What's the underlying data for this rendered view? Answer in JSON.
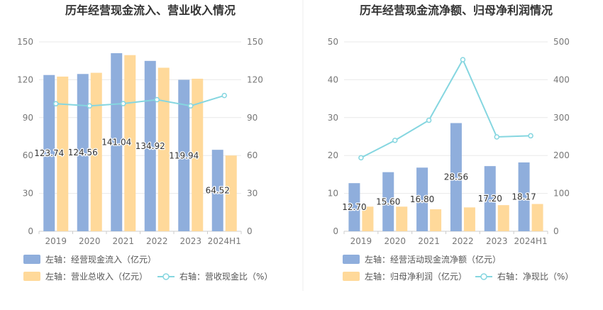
{
  "chart_data": [
    {
      "type": "bar",
      "title": "历年经营现金流入、营业收入情况",
      "categories": [
        "2019",
        "2020",
        "2021",
        "2022",
        "2023",
        "2024H1"
      ],
      "y_left": {
        "min": 0,
        "max": 150,
        "ticks": [
          0,
          30,
          60,
          90,
          120,
          150
        ]
      },
      "y_right": {
        "min": 0,
        "max": 150,
        "ticks": [
          0,
          30,
          60,
          90,
          120,
          150
        ]
      },
      "series": [
        {
          "name": "左轴：经营现金流入（亿元）",
          "kind": "bar",
          "axis": "left",
          "color": "#8faedc",
          "values": [
            123.74,
            124.56,
            141.04,
            134.92,
            119.94,
            64.52
          ],
          "show_labels": true
        },
        {
          "name": "左轴：营业总收入（亿元）",
          "kind": "bar",
          "axis": "left",
          "color": "#ffd99a",
          "values": [
            122.5,
            125.5,
            139.5,
            129.5,
            120.8,
            60.0
          ],
          "show_labels": false
        },
        {
          "name": "右轴：营收现金比（%）",
          "kind": "line",
          "axis": "right",
          "color": "#85d6e0",
          "values": [
            101.0,
            99.3,
            101.1,
            104.2,
            99.3,
            107.5
          ],
          "show_labels": false
        }
      ],
      "legend": "bottom-left"
    },
    {
      "type": "bar",
      "title": "历年经营现金流净额、归母净利润情况",
      "categories": [
        "2019",
        "2020",
        "2021",
        "2022",
        "2023",
        "2024H1"
      ],
      "y_left": {
        "min": 0,
        "max": 50,
        "ticks": [
          0,
          10,
          20,
          30,
          40,
          50
        ]
      },
      "y_right": {
        "min": 0,
        "max": 500,
        "ticks": [
          0,
          100,
          200,
          300,
          400,
          500
        ]
      },
      "series": [
        {
          "name": "左轴：经营活动现金流净额（亿元）",
          "kind": "bar",
          "axis": "left",
          "color": "#8faedc",
          "values": [
            12.7,
            15.6,
            16.8,
            28.56,
            17.2,
            18.17
          ],
          "show_labels": true
        },
        {
          "name": "左轴：归母净利润（亿元）",
          "kind": "bar",
          "axis": "left",
          "color": "#ffd99a",
          "values": [
            6.5,
            6.5,
            5.8,
            6.3,
            6.9,
            7.2
          ],
          "show_labels": false
        },
        {
          "name": "右轴：净现比（%）",
          "kind": "line",
          "axis": "right",
          "color": "#85d6e0",
          "values": [
            194,
            240,
            293,
            453,
            249,
            252
          ],
          "show_labels": false
        }
      ],
      "legend": "bottom-left"
    }
  ]
}
